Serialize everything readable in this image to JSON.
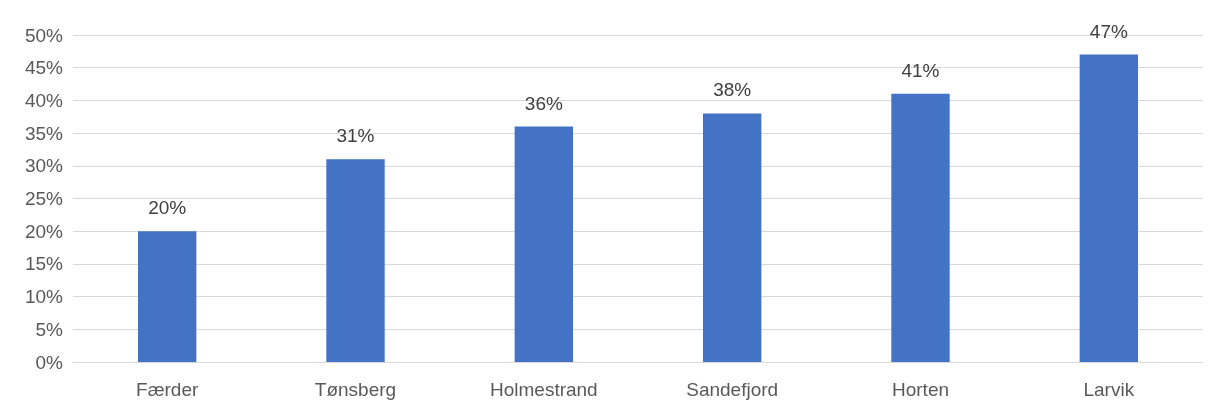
{
  "chart_data": {
    "type": "bar",
    "categories": [
      "Færder",
      "Tønsberg",
      "Holmestrand",
      "Sandefjord",
      "Horten",
      "Larvik"
    ],
    "values": [
      20,
      31,
      36,
      38,
      41,
      47
    ],
    "color": "#4472c4",
    "value_labels": [
      "20%",
      "31%",
      "36%",
      "38%",
      "41%",
      "47%"
    ],
    "ylim": [
      0,
      50
    ],
    "yticks": [
      {
        "value": 0,
        "label": "0%"
      },
      {
        "value": 5,
        "label": "5%"
      },
      {
        "value": 10,
        "label": "10%"
      },
      {
        "value": 15,
        "label": "15%"
      },
      {
        "value": 20,
        "label": "20%"
      },
      {
        "value": 25,
        "label": "25%"
      },
      {
        "value": 30,
        "label": "30%"
      },
      {
        "value": 35,
        "label": "35%"
      },
      {
        "value": 40,
        "label": "40%"
      },
      {
        "value": 45,
        "label": "45%"
      },
      {
        "value": 50,
        "label": "50%"
      }
    ],
    "grid": true
  }
}
